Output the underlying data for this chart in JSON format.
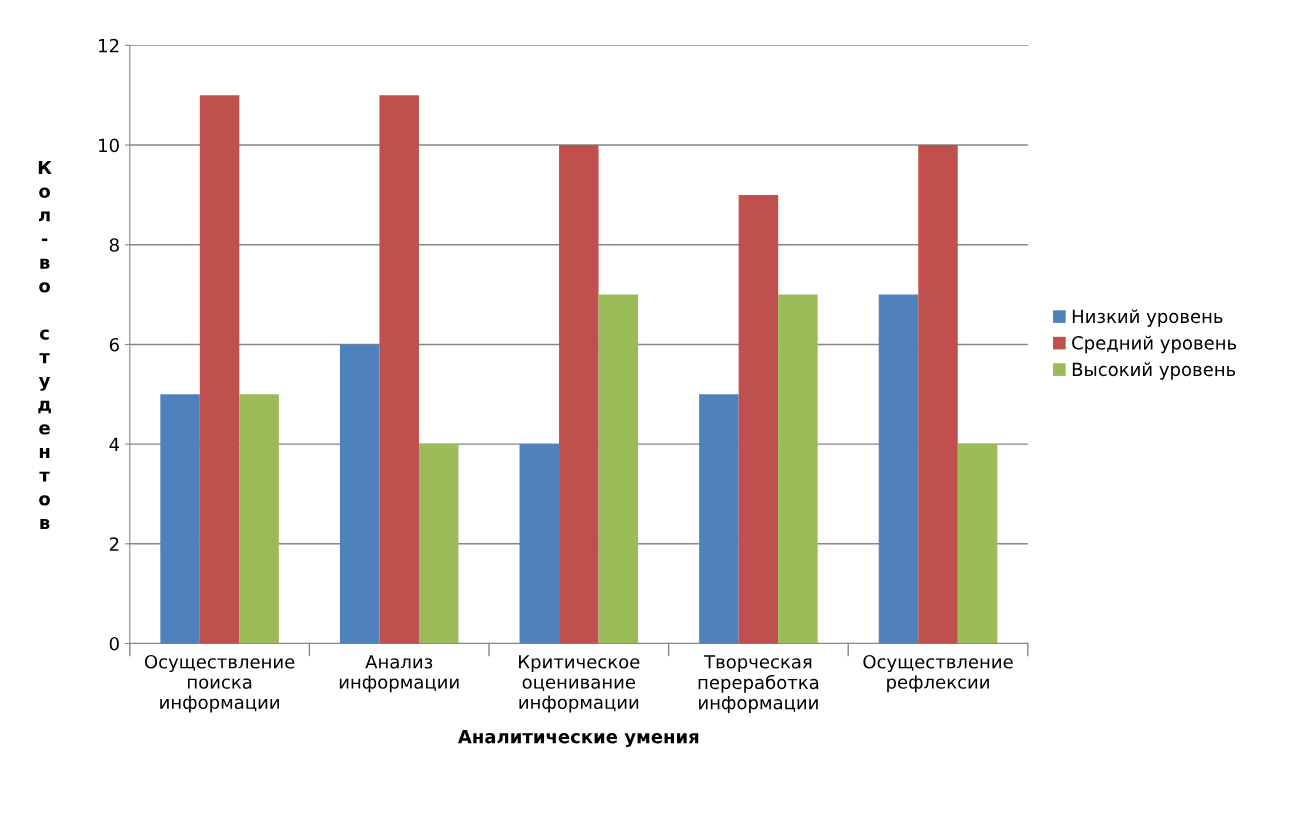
{
  "chart_data": {
    "type": "bar",
    "xlabel": "Аналитические умения",
    "ylabel": "Кол-во студентов",
    "categories": [
      "Осуществление\nпоиска\nинформации",
      "Анализ\nинформации",
      "Критическое\nоценивание\nинформации",
      "Творческая\nпереработка\nинформации",
      "Осуществление\nрефлексии"
    ],
    "series": [
      {
        "name": "Низкий уровень",
        "color": "#4f81bd",
        "values": [
          5,
          6,
          4,
          5,
          7
        ]
      },
      {
        "name": "Средний уровень",
        "color": "#c0504d",
        "values": [
          11,
          11,
          10,
          9,
          10
        ]
      },
      {
        "name": "Высокий уровень",
        "color": "#9bbb59",
        "values": [
          5,
          4,
          7,
          7,
          4
        ]
      }
    ],
    "ylim": [
      0,
      12
    ],
    "yticks": [
      0,
      2,
      4,
      6,
      8,
      10,
      12
    ],
    "grid": "y",
    "legend": "right"
  }
}
